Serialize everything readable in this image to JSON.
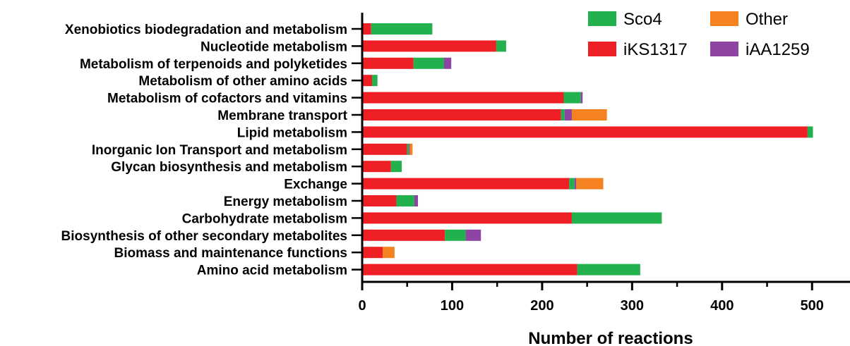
{
  "chart_data": {
    "type": "bar",
    "orientation": "horizontal",
    "stacked": true,
    "xlabel": "Number of reactions",
    "ylabel": "",
    "xlim": [
      0,
      540
    ],
    "xticks": [
      0,
      100,
      200,
      300,
      400,
      500
    ],
    "legend": "top-right",
    "grid": false,
    "categories": [
      "Xenobiotics biodegradation and metabolism",
      "Nucleotide metabolism",
      "Metabolism of terpenoids and polyketides",
      "Metabolism of other amino acids",
      "Metabolism of cofactors and vitamins",
      "Membrane transport",
      "Lipid metabolism",
      "Inorganic Ion Transport and metabolism",
      "Glycan biosynthesis and metabolism",
      "Exchange",
      "Energy metabolism",
      "Carbohydrate metabolism",
      "Biosynthesis of other secondary metabolites",
      "Biomass and maintenance functions",
      "Amino acid metabolism"
    ],
    "series": [
      {
        "name": "iKS1317",
        "color": "#ee1f25",
        "values": [
          10,
          149,
          57,
          11,
          224,
          221,
          495,
          50,
          32,
          230,
          38,
          233,
          92,
          23,
          239
        ]
      },
      {
        "name": "Sco4",
        "color": "#22b14c",
        "values": [
          68,
          11,
          34,
          6,
          19,
          4,
          6,
          2,
          12,
          6,
          20,
          100,
          23,
          0,
          70
        ]
      },
      {
        "name": "iAA1259",
        "color": "#8e44a3",
        "values": [
          0,
          0,
          8,
          0,
          2,
          8,
          0,
          1,
          0,
          2,
          4,
          0,
          17,
          0,
          0
        ]
      },
      {
        "name": "Other",
        "color": "#f58220",
        "values": [
          0,
          0,
          0,
          0,
          0,
          39,
          0,
          3,
          0,
          30,
          0,
          0,
          0,
          13,
          0
        ]
      }
    ],
    "legend_entries": [
      {
        "name": "Sco4",
        "color": "#22b14c"
      },
      {
        "name": "Other",
        "color": "#f58220"
      },
      {
        "name": "iKS1317",
        "color": "#ee1f25"
      },
      {
        "name": "iAA1259",
        "color": "#8e44a3"
      }
    ]
  }
}
